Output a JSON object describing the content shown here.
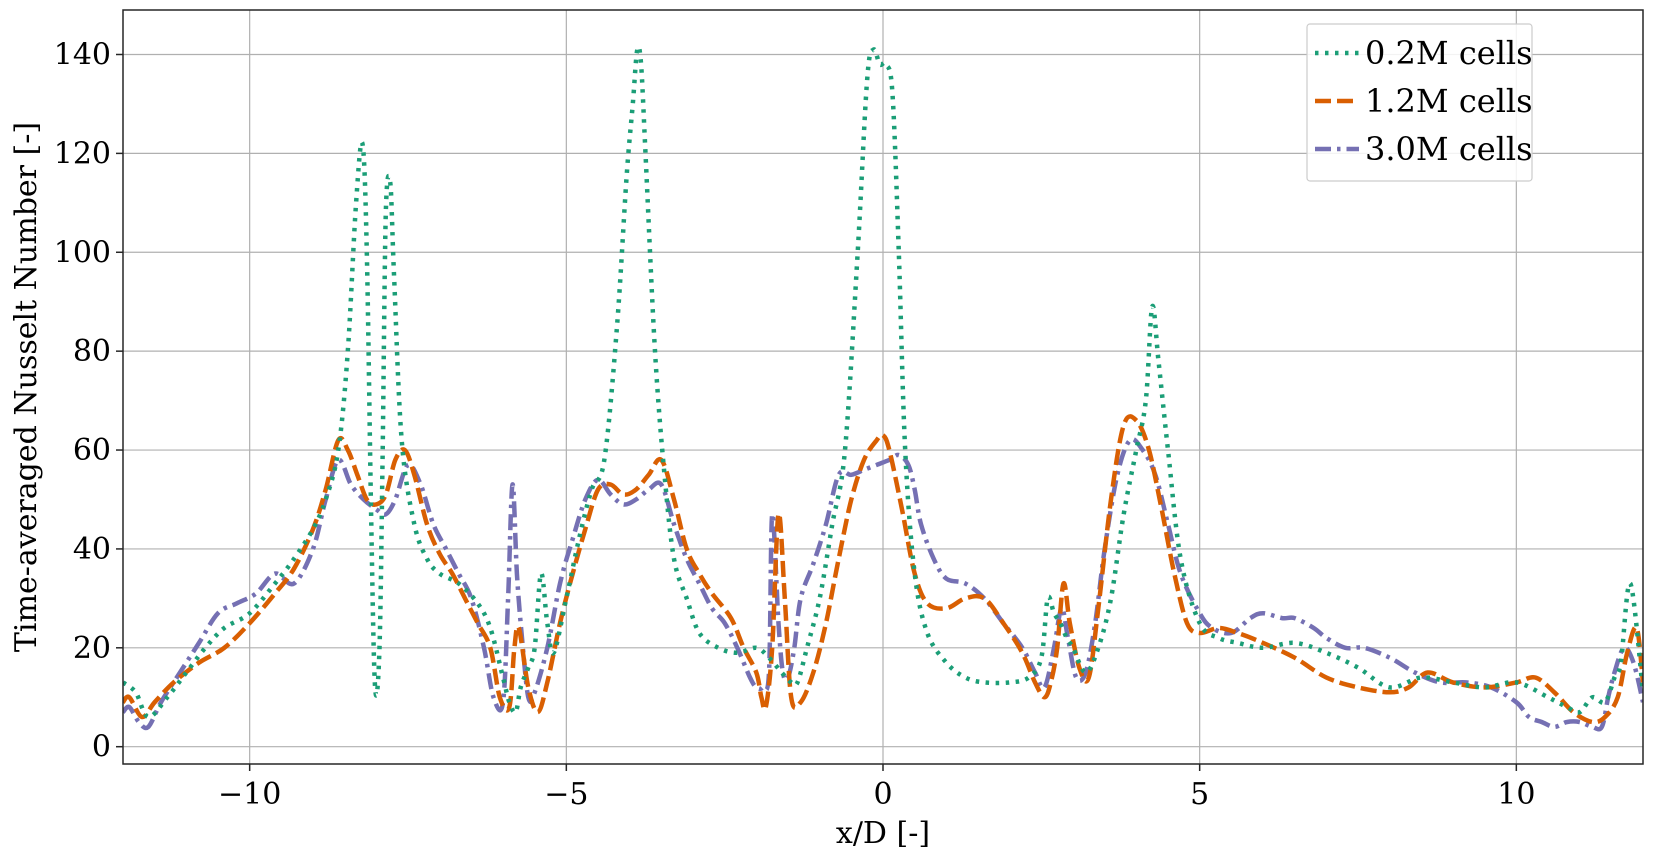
{
  "chart_data": {
    "type": "line",
    "xlabel": "x/D [-]",
    "ylabel": "Time-averaged Nusselt Number [-]",
    "xlim": [
      -12,
      12
    ],
    "ylim": [
      -3.5,
      149
    ],
    "xticks": [
      -10,
      -5,
      0,
      5,
      10
    ],
    "xtick_labels": [
      "−10",
      "−5",
      "0",
      "5",
      "10"
    ],
    "yticks": [
      0,
      20,
      40,
      60,
      80,
      100,
      120,
      140
    ],
    "ytick_labels": [
      "0",
      "20",
      "40",
      "60",
      "80",
      "100",
      "120",
      "140"
    ],
    "grid": true,
    "legend_position": "top-right",
    "series": [
      {
        "name": "0.2M cells",
        "color": "#1b9e77",
        "style": "dotted",
        "x": [
          -12.0,
          -11.8,
          -11.6,
          -11.3,
          -11.0,
          -10.7,
          -10.4,
          -10.0,
          -9.6,
          -9.3,
          -9.0,
          -8.8,
          -8.6,
          -8.45,
          -8.32,
          -8.22,
          -8.15,
          -8.08,
          -8.02,
          -7.95,
          -7.9,
          -7.85,
          -7.78,
          -7.72,
          -7.6,
          -7.4,
          -7.2,
          -7.0,
          -6.7,
          -6.4,
          -6.2,
          -6.0,
          -5.9,
          -5.8,
          -5.72,
          -5.6,
          -5.5,
          -5.4,
          -5.3,
          -5.2,
          -5.0,
          -4.8,
          -4.6,
          -4.4,
          -4.2,
          -4.05,
          -3.95,
          -3.88,
          -3.82,
          -3.75,
          -3.6,
          -3.45,
          -3.3,
          -3.1,
          -2.9,
          -2.6,
          -2.3,
          -2.0,
          -1.8,
          -1.6,
          -1.45,
          -1.35,
          -1.2,
          -1.0,
          -0.8,
          -0.6,
          -0.4,
          -0.25,
          -0.15,
          -0.05,
          0.05,
          0.15,
          0.25,
          0.35,
          0.5,
          0.7,
          1.0,
          1.3,
          1.6,
          2.0,
          2.3,
          2.5,
          2.6,
          2.7,
          2.8,
          2.9,
          3.0,
          3.2,
          3.4,
          3.6,
          3.8,
          4.0,
          4.15,
          4.25,
          4.35,
          4.5,
          4.7,
          5.0,
          5.3,
          5.6,
          6.0,
          6.5,
          7.0,
          7.5,
          8.0,
          8.5,
          9.0,
          9.5,
          10.0,
          10.5,
          10.8,
          11.0,
          11.2,
          11.4,
          11.55,
          11.65,
          11.8,
          12.0
        ],
        "y": [
          13,
          11,
          6,
          10,
          15,
          20,
          24,
          27,
          33,
          38,
          44,
          50,
          60,
          80,
          110,
          122,
          100,
          45,
          12,
          20,
          60,
          108,
          114,
          95,
          62,
          45,
          38,
          35,
          33,
          29,
          24,
          14,
          9,
          7,
          12,
          16,
          20,
          35,
          25,
          19,
          30,
          42,
          52,
          58,
          85,
          115,
          130,
          141,
          138,
          120,
          80,
          55,
          38,
          30,
          23,
          20,
          19,
          20,
          18,
          15,
          13,
          13,
          20,
          30,
          45,
          60,
          100,
          135,
          141,
          138,
          138,
          132,
          100,
          60,
          35,
          23,
          17,
          14,
          13,
          13,
          14,
          18,
          30,
          27,
          25,
          22,
          20,
          15,
          20,
          30,
          47,
          60,
          70,
          89,
          78,
          60,
          38,
          25,
          22,
          21,
          20,
          21,
          19,
          16,
          12,
          14,
          13,
          12,
          13,
          10,
          8,
          7,
          10,
          9,
          14,
          17,
          33,
          11
        ]
      },
      {
        "name": "1.2M cells",
        "color": "#d95f02",
        "style": "dashed",
        "x": [
          -12.0,
          -11.9,
          -11.7,
          -11.5,
          -11.2,
          -10.8,
          -10.4,
          -10.0,
          -9.6,
          -9.3,
          -9.0,
          -8.8,
          -8.6,
          -8.45,
          -8.3,
          -8.15,
          -8.0,
          -7.85,
          -7.7,
          -7.55,
          -7.4,
          -7.2,
          -7.0,
          -6.8,
          -6.6,
          -6.4,
          -6.2,
          -6.05,
          -5.9,
          -5.82,
          -5.75,
          -5.6,
          -5.45,
          -5.3,
          -5.1,
          -4.9,
          -4.7,
          -4.5,
          -4.3,
          -4.1,
          -3.9,
          -3.7,
          -3.5,
          -3.3,
          -3.1,
          -2.9,
          -2.7,
          -2.4,
          -2.2,
          -2.0,
          -1.92,
          -1.85,
          -1.75,
          -1.65,
          -1.55,
          -1.45,
          -1.3,
          -1.1,
          -0.9,
          -0.7,
          -0.5,
          -0.3,
          -0.1,
          0.0,
          0.1,
          0.3,
          0.5,
          0.7,
          1.0,
          1.3,
          1.6,
          1.9,
          2.2,
          2.4,
          2.55,
          2.65,
          2.75,
          2.85,
          2.95,
          3.1,
          3.25,
          3.4,
          3.6,
          3.8,
          4.0,
          4.2,
          4.4,
          4.6,
          4.8,
          5.0,
          5.3,
          5.6,
          6.0,
          6.5,
          7.0,
          7.5,
          8.0,
          8.3,
          8.6,
          9.0,
          9.5,
          10.0,
          10.3,
          10.6,
          10.9,
          11.2,
          11.4,
          11.6,
          11.75,
          11.9,
          12.0
        ],
        "y": [
          9,
          10,
          6,
          9,
          13,
          17,
          20,
          25,
          31,
          36,
          44,
          52,
          62,
          60,
          55,
          50,
          49,
          51,
          58,
          60,
          55,
          45,
          39,
          35,
          30,
          25,
          20,
          10,
          8,
          20,
          24,
          12,
          7,
          13,
          25,
          35,
          44,
          52,
          53,
          51,
          52,
          55,
          58,
          50,
          40,
          35,
          31,
          26,
          20,
          15,
          10,
          8,
          20,
          47,
          30,
          10,
          9,
          15,
          25,
          38,
          50,
          58,
          62,
          63,
          60,
          48,
          35,
          29,
          28,
          30,
          30,
          25,
          19,
          13,
          10,
          13,
          20,
          33,
          25,
          16,
          14,
          28,
          50,
          65,
          66,
          60,
          48,
          35,
          25,
          23,
          24,
          23,
          21,
          18,
          14,
          12,
          11,
          12,
          15,
          13,
          12,
          13,
          14,
          11,
          7,
          5,
          6,
          10,
          19,
          24,
          13
        ]
      },
      {
        "name": "3.0M cells",
        "color": "#7570b3",
        "style": "dashdot",
        "x": [
          -12.0,
          -11.9,
          -11.75,
          -11.6,
          -11.4,
          -11.1,
          -10.8,
          -10.5,
          -10.2,
          -9.9,
          -9.6,
          -9.3,
          -9.0,
          -8.8,
          -8.6,
          -8.4,
          -8.2,
          -8.0,
          -7.85,
          -7.7,
          -7.5,
          -7.3,
          -7.1,
          -6.9,
          -6.7,
          -6.5,
          -6.3,
          -6.15,
          -6.0,
          -5.92,
          -5.85,
          -5.78,
          -5.7,
          -5.6,
          -5.5,
          -5.3,
          -5.1,
          -4.9,
          -4.7,
          -4.5,
          -4.3,
          -4.1,
          -3.9,
          -3.7,
          -3.5,
          -3.3,
          -3.1,
          -2.9,
          -2.7,
          -2.5,
          -2.3,
          -2.1,
          -2.0,
          -1.9,
          -1.8,
          -1.75,
          -1.65,
          -1.58,
          -1.5,
          -1.4,
          -1.3,
          -1.1,
          -0.9,
          -0.7,
          -0.5,
          -0.3,
          -0.1,
          0.1,
          0.25,
          0.4,
          0.5,
          0.6,
          0.8,
          1.0,
          1.3,
          1.6,
          1.9,
          2.2,
          2.4,
          2.55,
          2.7,
          2.82,
          2.92,
          3.05,
          3.2,
          3.35,
          3.5,
          3.7,
          3.9,
          4.1,
          4.3,
          4.5,
          4.7,
          5.0,
          5.2,
          5.5,
          5.8,
          6.0,
          6.3,
          6.5,
          6.8,
          7.0,
          7.3,
          7.6,
          8.0,
          8.4,
          8.8,
          9.2,
          9.6,
          10.0,
          10.2,
          10.4,
          10.6,
          10.8,
          11.0,
          11.2,
          11.35,
          11.45,
          11.55,
          11.7,
          11.85,
          12.0
        ],
        "y": [
          7,
          8,
          5,
          4,
          9,
          15,
          21,
          27,
          29,
          31,
          35,
          33,
          40,
          50,
          58,
          53,
          50,
          48,
          47,
          50,
          57,
          53,
          45,
          40,
          35,
          30,
          20,
          10,
          9,
          30,
          53,
          35,
          22,
          10,
          11,
          20,
          33,
          42,
          50,
          54,
          51,
          49,
          50,
          52,
          53,
          45,
          38,
          33,
          28,
          25,
          20,
          14,
          12,
          12,
          15,
          47,
          25,
          15,
          14,
          20,
          30,
          37,
          45,
          55,
          55,
          56,
          57,
          58,
          59,
          57,
          52,
          45,
          38,
          34,
          33,
          30,
          25,
          20,
          15,
          12,
          20,
          28,
          22,
          14,
          15,
          25,
          40,
          55,
          62,
          60,
          55,
          45,
          35,
          27,
          24,
          23,
          26,
          27,
          26,
          26,
          24,
          22,
          20,
          20,
          18,
          15,
          13,
          13,
          12,
          9,
          6,
          5,
          4,
          5,
          5,
          4,
          4,
          10,
          15,
          20,
          17,
          9
        ]
      }
    ]
  }
}
